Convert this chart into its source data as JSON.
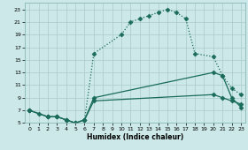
{
  "xlabel": "Humidex (Indice chaleur)",
  "bg_color": "#cce8e8",
  "grid_color": "#aacccc",
  "line_color": "#1a6b5a",
  "xlim": [
    -0.5,
    23.5
  ],
  "ylim": [
    5,
    24
  ],
  "xticks": [
    0,
    1,
    2,
    3,
    4,
    5,
    6,
    7,
    8,
    9,
    10,
    11,
    12,
    13,
    14,
    15,
    16,
    17,
    18,
    19,
    20,
    21,
    22,
    23
  ],
  "yticks": [
    5,
    7,
    9,
    11,
    13,
    15,
    17,
    19,
    21,
    23
  ],
  "line1_x": [
    0,
    1,
    2,
    3,
    4,
    5,
    6,
    7,
    10,
    11,
    12,
    13,
    14,
    15,
    16,
    17,
    18,
    20,
    21,
    22,
    23
  ],
  "line1_y": [
    7,
    6.5,
    6,
    6,
    5.5,
    5,
    5.5,
    16,
    19,
    21,
    21.5,
    22,
    22.5,
    23,
    22.5,
    21.5,
    16,
    15.5,
    12.5,
    10.5,
    9.5
  ],
  "line2_x": [
    0,
    2,
    3,
    4,
    5,
    6,
    7,
    20,
    21,
    22,
    23
  ],
  "line2_y": [
    7,
    6,
    6,
    5.5,
    5,
    5.5,
    9,
    13,
    12.5,
    9,
    7.5
  ],
  "line3_x": [
    0,
    2,
    3,
    4,
    5,
    6,
    7,
    20,
    21,
    22,
    23
  ],
  "line3_y": [
    7,
    6,
    6,
    5.5,
    5,
    5.5,
    8.5,
    9.5,
    9,
    8.5,
    8
  ],
  "marker": "D",
  "markersize": 2.5,
  "linewidth": 0.9
}
